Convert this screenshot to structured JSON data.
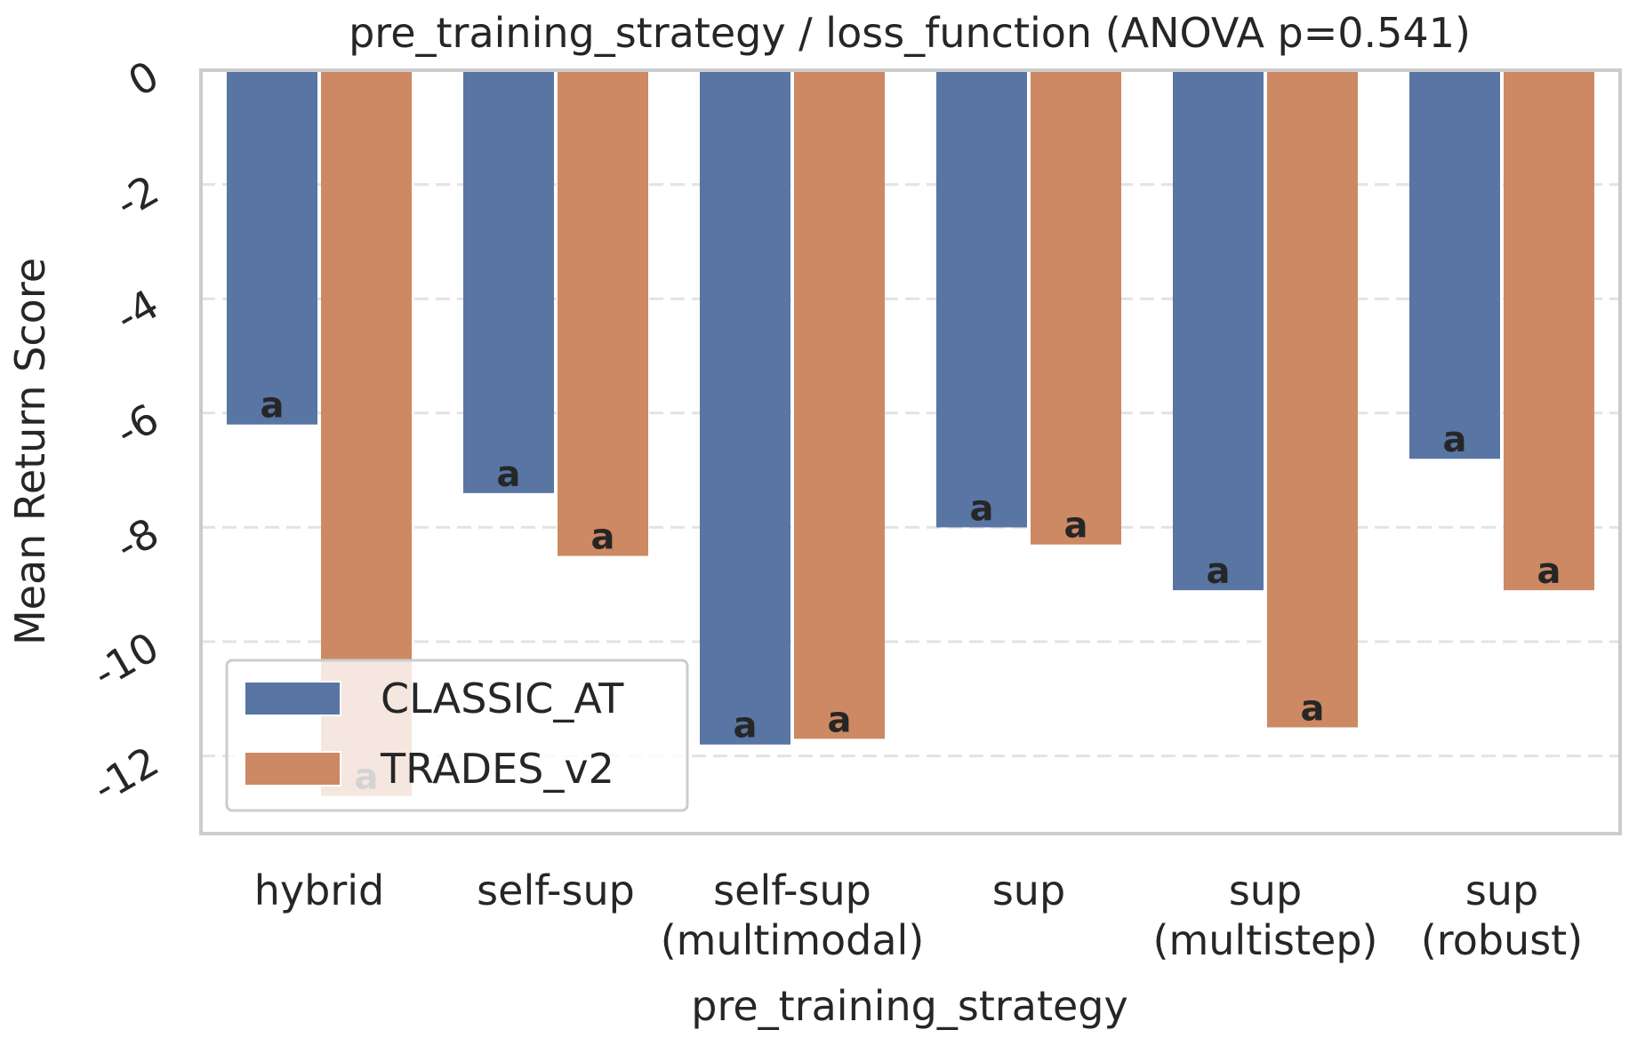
{
  "chart_data": {
    "type": "bar",
    "title": "pre_training_strategy / loss_function  (ANOVA p=0.541)",
    "xlabel": "pre_training_strategy",
    "ylabel": "Mean Return Score",
    "categories": [
      [
        "hybrid"
      ],
      [
        "self-sup"
      ],
      [
        "self-sup",
        "(multimodal)"
      ],
      [
        "sup"
      ],
      [
        "sup",
        "(multistep)"
      ],
      [
        "sup",
        "(robust)"
      ]
    ],
    "series": [
      {
        "name": "CLASSIC_AT",
        "color": "#5875a4",
        "values": [
          -6.2,
          -7.4,
          -11.8,
          -8.0,
          -9.1,
          -6.8
        ],
        "labels": [
          "a",
          "a",
          "a",
          "a",
          "a",
          "a"
        ]
      },
      {
        "name": "TRADES_v2",
        "color": "#cc8963",
        "values": [
          -12.7,
          -8.5,
          -11.7,
          -8.3,
          -11.5,
          -9.1
        ],
        "labels": [
          "a",
          "a",
          "a",
          "a",
          "a",
          "a"
        ]
      }
    ],
    "yticks": [
      0,
      -2,
      -4,
      -6,
      -8,
      -10,
      -12
    ],
    "ytick_labels": [
      "0",
      "-2",
      "-4",
      "-6",
      "-8",
      "-10",
      "-12"
    ],
    "ylim": [
      -13.4,
      0
    ],
    "grid": "y-dashed",
    "legend_position": "lower-left"
  }
}
